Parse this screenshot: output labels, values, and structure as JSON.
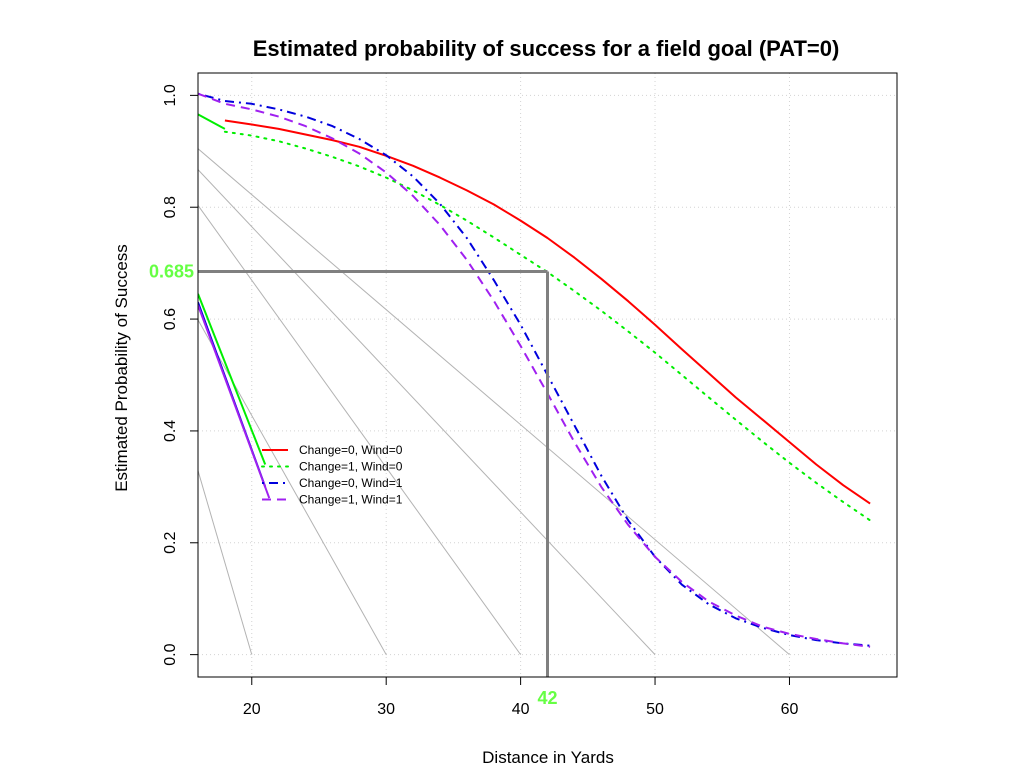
{
  "chart_data": {
    "type": "line",
    "title": "Estimated probability of success for a field goal (PAT=0)",
    "xlabel": "Distance in Yards",
    "ylabel": "Estimated Probability of Success",
    "xlim": [
      16,
      68
    ],
    "ylim": [
      -0.04,
      1.04
    ],
    "x_ticks": [
      "20",
      "30",
      "40",
      "50",
      "60"
    ],
    "y_ticks": [
      "0.0",
      "0.2",
      "0.4",
      "0.6",
      "0.8",
      "1.0"
    ],
    "grid": true,
    "legend_position": "left-middle, inside plot",
    "series": [
      {
        "name": "Change=0, Wind=0",
        "color": "#ff0000",
        "line_style": "solid",
        "x": [
          18,
          20,
          22,
          24,
          26,
          28,
          30,
          32,
          34,
          36,
          38,
          40,
          42,
          44,
          46,
          48,
          50,
          52,
          54,
          56,
          58,
          60,
          62,
          64,
          66
        ],
        "y": [
          0.955,
          0.948,
          0.94,
          0.93,
          0.92,
          0.908,
          0.892,
          0.874,
          0.853,
          0.83,
          0.805,
          0.776,
          0.745,
          0.71,
          0.672,
          0.632,
          0.59,
          0.546,
          0.503,
          0.46,
          0.42,
          0.38,
          0.34,
          0.303,
          0.27
        ]
      },
      {
        "name": "Change=1, Wind=0",
        "color": "#00ee00",
        "line_style": "dotted",
        "x": [
          18,
          20,
          22,
          24,
          26,
          28,
          30,
          32,
          34,
          36,
          38,
          40,
          42,
          44,
          46,
          48,
          50,
          52,
          54,
          56,
          58,
          60,
          62,
          64,
          66
        ],
        "y": [
          0.935,
          0.928,
          0.918,
          0.905,
          0.89,
          0.873,
          0.853,
          0.83,
          0.804,
          0.776,
          0.746,
          0.715,
          0.684,
          0.65,
          0.615,
          0.578,
          0.54,
          0.5,
          0.46,
          0.42,
          0.381,
          0.343,
          0.307,
          0.273,
          0.24
        ]
      },
      {
        "name": "Change=0, Wind=1",
        "color": "#0000dd",
        "line_style": "dot-dash",
        "x": [
          16,
          18,
          20,
          22,
          24,
          26,
          28,
          30,
          32,
          34,
          36,
          38,
          40,
          42,
          44,
          46,
          48,
          50,
          52,
          54,
          56,
          58,
          60,
          62,
          64,
          66
        ],
        "y": [
          1.003,
          0.99,
          0.985,
          0.975,
          0.962,
          0.945,
          0.922,
          0.893,
          0.855,
          0.806,
          0.745,
          0.67,
          0.59,
          0.5,
          0.41,
          0.32,
          0.24,
          0.175,
          0.125,
          0.09,
          0.065,
          0.048,
          0.035,
          0.026,
          0.02,
          0.016
        ]
      },
      {
        "name": "Change=1, Wind=1",
        "color": "#a020f0",
        "line_style": "dashed",
        "x": [
          16,
          18,
          20,
          22,
          24,
          26,
          28,
          30,
          32,
          34,
          36,
          38,
          40,
          42,
          44,
          46,
          48,
          50,
          52,
          54,
          56,
          58,
          60,
          62,
          64,
          66
        ],
        "y": [
          1.003,
          0.985,
          0.975,
          0.962,
          0.945,
          0.923,
          0.896,
          0.862,
          0.82,
          0.768,
          0.706,
          0.633,
          0.552,
          0.467,
          0.38,
          0.3,
          0.232,
          0.175,
          0.13,
          0.095,
          0.07,
          0.05,
          0.037,
          0.028,
          0.02,
          0.014
        ]
      }
    ],
    "highlight": {
      "x": 42,
      "y": 0.685,
      "x_label": "42",
      "y_label": "0.685",
      "color": "#808080",
      "label_color": "#66ff44"
    },
    "reference_lines": {
      "color": "#b3b3b3",
      "lines": [
        {
          "x1": 15.5,
          "y1": 0.37,
          "x2": 20,
          "y2": 0.0
        },
        {
          "x1": 15.5,
          "y1": 0.62,
          "x2": 30,
          "y2": 0.0
        },
        {
          "x1": 15.5,
          "y1": 0.82,
          "x2": 40,
          "y2": 0.0
        },
        {
          "x1": 15.5,
          "y1": 0.88,
          "x2": 50,
          "y2": 0.0
        },
        {
          "x1": 15.5,
          "y1": 0.915,
          "x2": 60,
          "y2": 0.0
        }
      ]
    },
    "legend_ticks": [
      {
        "color": "#00ee00",
        "x1": 16,
        "y1": 0.645,
        "x2": 21,
        "y2": 0.34
      },
      {
        "color": "#0000dd",
        "x1": 16,
        "y1": 0.63,
        "x2": 21,
        "y2": 0.3
      },
      {
        "color": "#a020f0",
        "x1": 16,
        "y1": 0.625,
        "x2": 21.3,
        "y2": 0.28
      },
      {
        "color": "#00ee00",
        "x1": 16,
        "y1": 0.966,
        "x2": 18,
        "y2": 0.94
      }
    ]
  }
}
